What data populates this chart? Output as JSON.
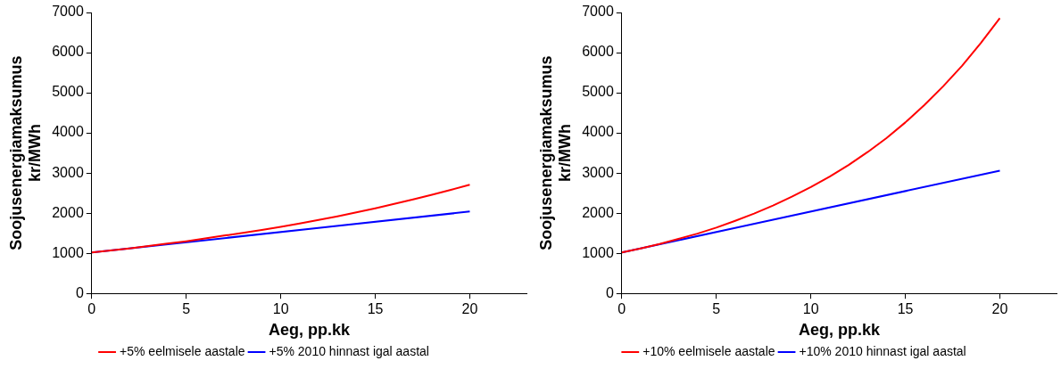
{
  "chart_data": [
    {
      "type": "line",
      "xlabel": "Aeg, pp.kk",
      "ylabel": "Soojusenergiamaksumus\nkr/MWh",
      "xlim": [
        0,
        23
      ],
      "xticks": [
        0,
        5,
        10,
        15,
        20
      ],
      "ylim": [
        0,
        7000
      ],
      "yticks": [
        0,
        1000,
        2000,
        3000,
        4000,
        5000,
        6000,
        7000
      ],
      "grid": false,
      "legend": "bottom",
      "marker": "none",
      "line_style": "solid",
      "series": [
        {
          "name": "+5% eelmisele aastale",
          "color": "#ff0000",
          "x": [
            0,
            1,
            2,
            3,
            4,
            5,
            6,
            7,
            8,
            9,
            10,
            11,
            12,
            13,
            14,
            15,
            16,
            17,
            18,
            19,
            20
          ],
          "values": [
            1020,
            1070,
            1120,
            1180,
            1240,
            1300,
            1370,
            1440,
            1510,
            1580,
            1660,
            1740,
            1830,
            1920,
            2020,
            2120,
            2230,
            2340,
            2460,
            2580,
            2710
          ]
        },
        {
          "name": "+5% 2010 hinnast igal aastal",
          "color": "#0000ff",
          "x": [
            0,
            20
          ],
          "values": [
            1020,
            2040
          ]
        }
      ]
    },
    {
      "type": "line",
      "xlabel": "Aeg, pp.kk",
      "ylabel": "Soojusenergiamaksumus\nkr/MWh",
      "xlim": [
        0,
        23
      ],
      "xticks": [
        0,
        5,
        10,
        15,
        20
      ],
      "ylim": [
        0,
        7000
      ],
      "yticks": [
        0,
        1000,
        2000,
        3000,
        4000,
        5000,
        6000,
        7000
      ],
      "grid": false,
      "legend": "bottom",
      "marker": "none",
      "line_style": "solid",
      "series": [
        {
          "name": "+10% eelmisele aastale",
          "color": "#ff0000",
          "x": [
            0,
            1,
            2,
            3,
            4,
            5,
            6,
            7,
            8,
            9,
            10,
            11,
            12,
            13,
            14,
            15,
            16,
            17,
            18,
            19,
            20
          ],
          "values": [
            1020,
            1120,
            1230,
            1360,
            1490,
            1640,
            1810,
            1990,
            2190,
            2410,
            2650,
            2910,
            3200,
            3520,
            3870,
            4260,
            4690,
            5160,
            5670,
            6240,
            6860
          ]
        },
        {
          "name": "+10% 2010 hinnast igal aastal",
          "color": "#0000ff",
          "x": [
            0,
            20
          ],
          "values": [
            1020,
            3060
          ]
        }
      ]
    }
  ]
}
